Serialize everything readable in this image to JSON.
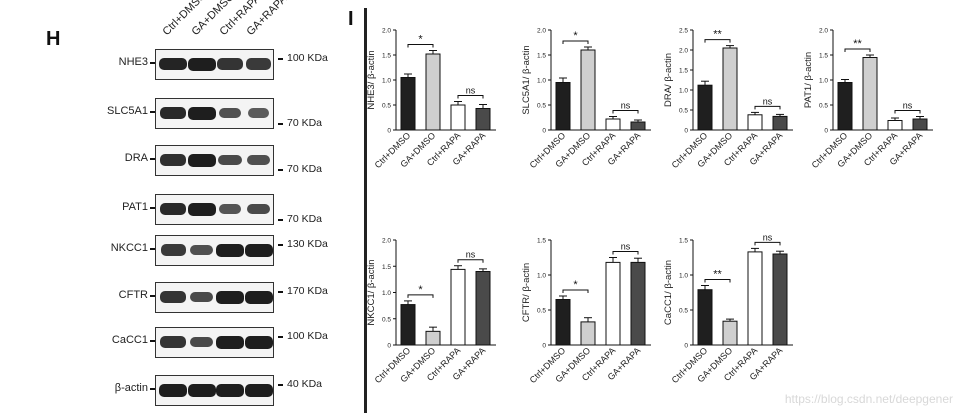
{
  "panel_h": {
    "letter": "H",
    "lanes": [
      "Ctrl+DMSO",
      "GA+DMSO",
      "Ctrl+RAPA",
      "GA+RAPA"
    ],
    "blots": [
      {
        "protein": "NHE3",
        "mw": "100 KDa",
        "intensity": [
          0.95,
          1.0,
          0.8,
          0.75
        ]
      },
      {
        "protein": "SLC5A1",
        "mw": "70 KDa",
        "intensity": [
          0.9,
          1.0,
          0.55,
          0.45
        ]
      },
      {
        "protein": "DRA",
        "mw": "70 KDa",
        "intensity": [
          0.85,
          1.0,
          0.6,
          0.55
        ]
      },
      {
        "protein": "PAT1",
        "mw": "70 KDa",
        "intensity": [
          0.9,
          1.0,
          0.5,
          0.6
        ]
      },
      {
        "protein": "NKCC1",
        "mw": "130 KDa",
        "intensity": [
          0.75,
          0.55,
          1.0,
          1.0
        ]
      },
      {
        "protein": "CFTR",
        "mw": "170 KDa",
        "intensity": [
          0.8,
          0.6,
          1.0,
          1.0
        ]
      },
      {
        "protein": "CaCC1",
        "mw": "100 KDa",
        "intensity": [
          0.8,
          0.6,
          1.0,
          1.0
        ]
      },
      {
        "protein": "β-actin",
        "mw": "40 KDa",
        "intensity": [
          1.0,
          1.0,
          1.0,
          1.0
        ]
      }
    ]
  },
  "panel_i": {
    "letter": "I"
  },
  "watermark": "https://blog.csdn.net/deepgener",
  "colors": {
    "Ctrl+DMSO": "#1f1f1f",
    "GA+DMSO": "#cfcfcf",
    "Ctrl+RAPA": "#ffffff",
    "GA+RAPA": "#4a4a4a"
  },
  "chart_data": [
    {
      "type": "bar",
      "ylabel": "NHE3/ β-actin",
      "categories": [
        "Ctrl+DMSO",
        "GA+DMSO",
        "Ctrl+RAPA",
        "GA+RAPA"
      ],
      "values": [
        1.05,
        1.52,
        0.5,
        0.43
      ],
      "errors": [
        0.07,
        0.07,
        0.07,
        0.08
      ],
      "ylim": [
        0,
        2.0
      ],
      "yticks": [
        "0",
        "0.5",
        "1.0",
        "1.5",
        "2.0"
      ],
      "sig": [
        {
          "pair": [
            0,
            1
          ],
          "label": "*"
        },
        {
          "pair": [
            2,
            3
          ],
          "label": "ns"
        }
      ]
    },
    {
      "type": "bar",
      "ylabel": "SLC5A1/ β-actin",
      "categories": [
        "Ctrl+DMSO",
        "GA+DMSO",
        "Ctrl+RAPA",
        "GA+RAPA"
      ],
      "values": [
        0.95,
        1.6,
        0.22,
        0.16
      ],
      "errors": [
        0.09,
        0.06,
        0.05,
        0.04
      ],
      "ylim": [
        0,
        2.0
      ],
      "yticks": [
        "0",
        "0.5",
        "1.0",
        "1.5",
        "2.0"
      ],
      "sig": [
        {
          "pair": [
            0,
            1
          ],
          "label": "*"
        },
        {
          "pair": [
            2,
            3
          ],
          "label": "ns"
        }
      ]
    },
    {
      "type": "bar",
      "ylabel": "DRA/ β-actin",
      "categories": [
        "Ctrl+DMSO",
        "GA+DMSO",
        "Ctrl+RAPA",
        "GA+RAPA"
      ],
      "values": [
        1.12,
        2.05,
        0.38,
        0.34
      ],
      "errors": [
        0.1,
        0.06,
        0.06,
        0.05
      ],
      "ylim": [
        0,
        2.5
      ],
      "yticks": [
        "0",
        "0.5",
        "1.0",
        "1.5",
        "2.0",
        "2.5"
      ],
      "sig": [
        {
          "pair": [
            0,
            1
          ],
          "label": "**"
        },
        {
          "pair": [
            2,
            3
          ],
          "label": "ns"
        }
      ]
    },
    {
      "type": "bar",
      "ylabel": "PAT1/ β-actin",
      "categories": [
        "Ctrl+DMSO",
        "GA+DMSO",
        "Ctrl+RAPA",
        "GA+RAPA"
      ],
      "values": [
        0.95,
        1.45,
        0.19,
        0.22
      ],
      "errors": [
        0.06,
        0.05,
        0.05,
        0.05
      ],
      "ylim": [
        0,
        2.0
      ],
      "yticks": [
        "0",
        "0.5",
        "1.0",
        "1.5",
        "2.0"
      ],
      "sig": [
        {
          "pair": [
            0,
            1
          ],
          "label": "**"
        },
        {
          "pair": [
            2,
            3
          ],
          "label": "ns"
        }
      ]
    },
    {
      "type": "bar",
      "ylabel": "NKCC1/ β-actin",
      "categories": [
        "Ctrl+DMSO",
        "GA+DMSO",
        "Ctrl+RAPA",
        "GA+RAPA"
      ],
      "values": [
        0.77,
        0.26,
        1.44,
        1.4
      ],
      "errors": [
        0.07,
        0.08,
        0.07,
        0.05
      ],
      "ylim": [
        0,
        2.0
      ],
      "yticks": [
        "0",
        "0.5",
        "1.0",
        "1.5",
        "2.0"
      ],
      "sig": [
        {
          "pair": [
            0,
            1
          ],
          "label": "*"
        },
        {
          "pair": [
            2,
            3
          ],
          "label": "ns"
        }
      ]
    },
    {
      "type": "bar",
      "ylabel": "CFTR/ β-actin",
      "categories": [
        "Ctrl+DMSO",
        "GA+DMSO",
        "Ctrl+RAPA",
        "GA+RAPA"
      ],
      "values": [
        0.65,
        0.33,
        1.18,
        1.18
      ],
      "errors": [
        0.05,
        0.06,
        0.07,
        0.06
      ],
      "ylim": [
        0,
        1.5
      ],
      "yticks": [
        "0",
        "0.5",
        "1.0",
        "1.5"
      ],
      "sig": [
        {
          "pair": [
            0,
            1
          ],
          "label": "*"
        },
        {
          "pair": [
            2,
            3
          ],
          "label": "ns"
        }
      ]
    },
    {
      "type": "bar",
      "ylabel": "CaCC1/ β-actin",
      "categories": [
        "Ctrl+DMSO",
        "GA+DMSO",
        "Ctrl+RAPA",
        "GA+RAPA"
      ],
      "values": [
        0.79,
        0.34,
        1.33,
        1.3
      ],
      "errors": [
        0.06,
        0.03,
        0.05,
        0.04
      ],
      "ylim": [
        0,
        1.5
      ],
      "yticks": [
        "0",
        "0.5",
        "1.0",
        "1.5"
      ],
      "sig": [
        {
          "pair": [
            0,
            1
          ],
          "label": "**"
        },
        {
          "pair": [
            2,
            3
          ],
          "label": "ns"
        }
      ]
    }
  ]
}
